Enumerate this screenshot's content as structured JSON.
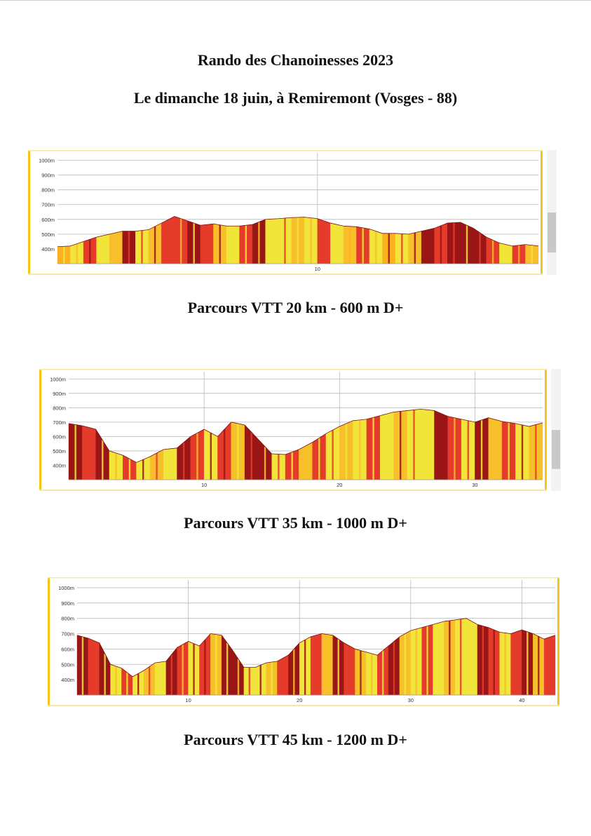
{
  "header": {
    "title": "Rando des Chanoinesses 2023",
    "subtitle": "Le dimanche 18 juin, à Remiremont (Vosges - 88)"
  },
  "chart_data": [
    {
      "type": "area",
      "title": "",
      "caption": "Parcours VTT 20 km - 600 m D+",
      "xlabel": "",
      "ylabel": "",
      "ylim": [
        300,
        1050
      ],
      "xlim": [
        0,
        18.5
      ],
      "y_ticks": [
        "400m",
        "500m",
        "600m",
        "700m",
        "800m",
        "900m",
        "1000m"
      ],
      "x_ticks": [
        10
      ],
      "grid": true,
      "x": [
        0,
        0.5,
        1,
        1.5,
        2,
        2.5,
        3,
        3.5,
        4,
        4.5,
        5,
        5.5,
        6,
        6.5,
        7,
        7.5,
        8,
        8.5,
        9,
        9.5,
        10,
        10.5,
        11,
        11.5,
        12,
        12.5,
        13,
        13.5,
        14,
        14.5,
        15,
        15.5,
        16,
        16.5,
        17,
        17.5,
        18,
        18.5
      ],
      "y": [
        415,
        420,
        450,
        480,
        500,
        520,
        520,
        530,
        575,
        620,
        590,
        560,
        570,
        555,
        555,
        565,
        600,
        605,
        612,
        615,
        605,
        575,
        555,
        550,
        535,
        505,
        505,
        500,
        520,
        540,
        575,
        580,
        540,
        480,
        440,
        420,
        430,
        420
      ],
      "colors": [
        "#ffb020",
        "#f2e53a",
        "#e53b2a",
        "#f2e53a",
        "#f7c02a",
        "#9a1515",
        "#f2e53a",
        "#f7c02a",
        "#e53b2a",
        "#e53b2a",
        "#9a1515",
        "#e53b2a",
        "#f7c02a",
        "#f2e53a",
        "#e53b2a",
        "#9a1515",
        "#f2e53a",
        "#f2e53a",
        "#f7c02a",
        "#f2e53a",
        "#e53b2a",
        "#f2e53a",
        "#f7c02a",
        "#e53b2a",
        "#f2e53a",
        "#ffb020",
        "#f2e53a",
        "#f7c02a",
        "#9a1515",
        "#e53b2a",
        "#9a1515",
        "#9a1515",
        "#9a1515",
        "#e53b2a",
        "#f2e53a",
        "#e53b2a",
        "#f7c02a",
        "#f2e53a"
      ]
    },
    {
      "type": "area",
      "title": "",
      "caption": "Parcours VTT 35 km - 1000 m D+",
      "xlabel": "",
      "ylabel": "",
      "ylim": [
        300,
        1050
      ],
      "xlim": [
        0,
        35
      ],
      "y_ticks": [
        "400m",
        "500m",
        "600m",
        "700m",
        "800m",
        "900m",
        "1000m"
      ],
      "x_ticks": [
        10,
        20,
        30
      ],
      "grid": true,
      "x": [
        0,
        1,
        2,
        3,
        4,
        5,
        6,
        7,
        8,
        9,
        10,
        11,
        12,
        13,
        14,
        15,
        16,
        17,
        18,
        19,
        20,
        21,
        22,
        23,
        24,
        25,
        26,
        27,
        28,
        29,
        30,
        31,
        32,
        33,
        34,
        35
      ],
      "y": [
        690,
        675,
        650,
        500,
        470,
        420,
        460,
        510,
        520,
        600,
        650,
        600,
        700,
        680,
        580,
        480,
        475,
        510,
        560,
        620,
        670,
        710,
        720,
        745,
        770,
        780,
        790,
        780,
        740,
        720,
        700,
        730,
        705,
        690,
        670,
        695
      ],
      "colors": [
        "#9a1515",
        "#e53b2a",
        "#9a1515",
        "#f2e53a",
        "#e53b2a",
        "#f2e53a",
        "#f7c02a",
        "#f2e53a",
        "#9a1515",
        "#e53b2a",
        "#f2e53a",
        "#e53b2a",
        "#f7c02a",
        "#9a1515",
        "#9a1515",
        "#f2e53a",
        "#e53b2a",
        "#f7c02a",
        "#e53b2a",
        "#f2e53a",
        "#f7c02a",
        "#f2e53a",
        "#e53b2a",
        "#f2e53a",
        "#f7c02a",
        "#f2e53a",
        "#f2e53a",
        "#9a1515",
        "#e53b2a",
        "#f2e53a",
        "#9a1515",
        "#f7c02a",
        "#e53b2a",
        "#f2e53a",
        "#f7c02a",
        "#f2e53a"
      ]
    },
    {
      "type": "area",
      "title": "",
      "caption": "Parcours VTT 45 km - 1200 m D+",
      "xlabel": "",
      "ylabel": "",
      "ylim": [
        300,
        1050
      ],
      "xlim": [
        0,
        43
      ],
      "y_ticks": [
        "400m",
        "500m",
        "600m",
        "700m",
        "800m",
        "900m",
        "1000m"
      ],
      "x_ticks": [
        10,
        20,
        30,
        40
      ],
      "grid": true,
      "x": [
        0,
        1,
        2,
        3,
        4,
        5,
        6,
        7,
        8,
        9,
        10,
        11,
        12,
        13,
        14,
        15,
        16,
        17,
        18,
        19,
        20,
        21,
        22,
        23,
        24,
        25,
        26,
        27,
        28,
        29,
        30,
        31,
        32,
        33,
        34,
        35,
        36,
        37,
        38,
        39,
        40,
        41,
        42,
        43
      ],
      "y": [
        690,
        670,
        640,
        500,
        475,
        420,
        460,
        510,
        520,
        610,
        650,
        620,
        700,
        690,
        590,
        480,
        480,
        510,
        520,
        560,
        640,
        680,
        700,
        690,
        640,
        600,
        580,
        560,
        620,
        680,
        720,
        740,
        760,
        780,
        790,
        800,
        760,
        740,
        710,
        700,
        725,
        700,
        665,
        690
      ],
      "colors": [
        "#9a1515",
        "#e53b2a",
        "#9a1515",
        "#f2e53a",
        "#e53b2a",
        "#f2e53a",
        "#f7c02a",
        "#f2e53a",
        "#9a1515",
        "#e53b2a",
        "#f2e53a",
        "#e53b2a",
        "#f7c02a",
        "#9a1515",
        "#9a1515",
        "#f2e53a",
        "#f2e53a",
        "#f7c02a",
        "#e53b2a",
        "#9a1515",
        "#f2e53a",
        "#e53b2a",
        "#f7c02a",
        "#9a1515",
        "#e53b2a",
        "#f7c02a",
        "#f2e53a",
        "#e53b2a",
        "#9a1515",
        "#f7c02a",
        "#f2e53a",
        "#e53b2a",
        "#f2e53a",
        "#f7c02a",
        "#f2e53a",
        "#f2e53a",
        "#9a1515",
        "#e53b2a",
        "#f2e53a",
        "#e53b2a",
        "#9a1515",
        "#f7c02a",
        "#e53b2a",
        "#f2e53a"
      ]
    }
  ],
  "colors": {
    "frame": "#f5c518",
    "grid": "#b8b8b8",
    "scrollbar": "#c8c8c8"
  }
}
